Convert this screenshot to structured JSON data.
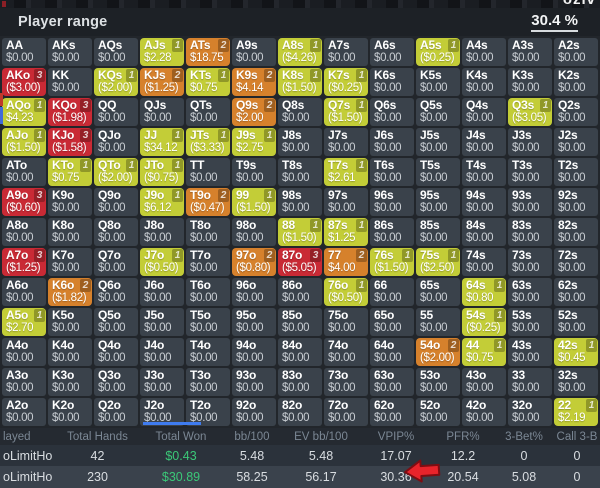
{
  "header": {
    "title": "Player range",
    "percent": "30.4 %"
  },
  "background": {
    "partial_text": "oziv"
  },
  "grid": {
    "cell_format": [
      "hand",
      "value",
      "color(n=none,y=yellow,o=orange,r=red)",
      "badge"
    ],
    "rows": [
      [
        [
          "AA",
          "$0.00",
          "n",
          ""
        ],
        [
          "AKs",
          "$0.00",
          "n",
          ""
        ],
        [
          "AQs",
          "$0.00",
          "n",
          ""
        ],
        [
          "AJs",
          "$2.28",
          "y",
          "1"
        ],
        [
          "ATs",
          "$18.75",
          "o",
          "2"
        ],
        [
          "A9s",
          "$0.00",
          "n",
          ""
        ],
        [
          "A8s",
          "($4.26)",
          "y",
          "1"
        ],
        [
          "A7s",
          "$0.00",
          "n",
          ""
        ],
        [
          "A6s",
          "$0.00",
          "n",
          ""
        ],
        [
          "A5s",
          "($0.25)",
          "y",
          "1"
        ],
        [
          "A4s",
          "$0.00",
          "n",
          ""
        ],
        [
          "A3s",
          "$0.00",
          "n",
          ""
        ],
        [
          "A2s",
          "$0.00",
          "n",
          ""
        ]
      ],
      [
        [
          "AKo",
          "($3.00)",
          "r",
          "3"
        ],
        [
          "KK",
          "$0.00",
          "n",
          ""
        ],
        [
          "KQs",
          "($2.00)",
          "y",
          "1"
        ],
        [
          "KJs",
          "($1.25)",
          "o",
          "2"
        ],
        [
          "KTs",
          "$0.75",
          "y",
          "1"
        ],
        [
          "K9s",
          "$4.14",
          "o",
          "2"
        ],
        [
          "K8s",
          "($1.50)",
          "y",
          "1"
        ],
        [
          "K7s",
          "($0.25)",
          "y",
          "1"
        ],
        [
          "K6s",
          "$0.00",
          "n",
          ""
        ],
        [
          "K5s",
          "$0.00",
          "n",
          ""
        ],
        [
          "K4s",
          "$0.00",
          "n",
          ""
        ],
        [
          "K3s",
          "$0.00",
          "n",
          ""
        ],
        [
          "K2s",
          "$0.00",
          "n",
          ""
        ]
      ],
      [
        [
          "AQo",
          "$4.23",
          "y",
          "1"
        ],
        [
          "KQo",
          "($1.98)",
          "r",
          "3"
        ],
        [
          "QQ",
          "$0.00",
          "n",
          ""
        ],
        [
          "QJs",
          "$0.00",
          "n",
          ""
        ],
        [
          "QTs",
          "$0.00",
          "n",
          ""
        ],
        [
          "Q9s",
          "$2.00",
          "o",
          "2"
        ],
        [
          "Q8s",
          "$0.00",
          "n",
          ""
        ],
        [
          "Q7s",
          "($1.50)",
          "y",
          "1"
        ],
        [
          "Q6s",
          "$0.00",
          "n",
          ""
        ],
        [
          "Q5s",
          "$0.00",
          "n",
          ""
        ],
        [
          "Q4s",
          "$0.00",
          "n",
          ""
        ],
        [
          "Q3s",
          "($3.05)",
          "y",
          "1"
        ],
        [
          "Q2s",
          "$0.00",
          "n",
          ""
        ]
      ],
      [
        [
          "AJo",
          "($1.50)",
          "y",
          "1"
        ],
        [
          "KJo",
          "($1.58)",
          "r",
          "3"
        ],
        [
          "QJo",
          "$0.00",
          "n",
          ""
        ],
        [
          "JJ",
          "$34.12",
          "y",
          "1"
        ],
        [
          "JTs",
          "($3.33)",
          "y",
          "1"
        ],
        [
          "J9s",
          "$2.75",
          "y",
          "1"
        ],
        [
          "J8s",
          "$0.00",
          "n",
          ""
        ],
        [
          "J7s",
          "$0.00",
          "n",
          ""
        ],
        [
          "J6s",
          "$0.00",
          "n",
          ""
        ],
        [
          "J5s",
          "$0.00",
          "n",
          ""
        ],
        [
          "J4s",
          "$0.00",
          "n",
          ""
        ],
        [
          "J3s",
          "$0.00",
          "n",
          ""
        ],
        [
          "J2s",
          "$0.00",
          "n",
          ""
        ]
      ],
      [
        [
          "ATo",
          "$0.00",
          "n",
          ""
        ],
        [
          "KTo",
          "$0.75",
          "y",
          "1"
        ],
        [
          "QTo",
          "($2.00)",
          "y",
          "1"
        ],
        [
          "JTo",
          "($0.75)",
          "y",
          "1"
        ],
        [
          "TT",
          "$0.00",
          "n",
          ""
        ],
        [
          "T9s",
          "$0.00",
          "n",
          ""
        ],
        [
          "T8s",
          "$0.00",
          "n",
          ""
        ],
        [
          "T7s",
          "$2.61",
          "y",
          "1"
        ],
        [
          "T6s",
          "$0.00",
          "n",
          ""
        ],
        [
          "T5s",
          "$0.00",
          "n",
          ""
        ],
        [
          "T4s",
          "$0.00",
          "n",
          ""
        ],
        [
          "T3s",
          "$0.00",
          "n",
          ""
        ],
        [
          "T2s",
          "$0.00",
          "n",
          ""
        ]
      ],
      [
        [
          "A9o",
          "($0.60)",
          "r",
          "3"
        ],
        [
          "K9o",
          "$0.00",
          "n",
          ""
        ],
        [
          "Q9o",
          "$0.00",
          "n",
          ""
        ],
        [
          "J9o",
          "$6.12",
          "y",
          "1"
        ],
        [
          "T9o",
          "($0.47)",
          "o",
          "2"
        ],
        [
          "99",
          "($1.50)",
          "y",
          "1"
        ],
        [
          "98s",
          "$0.00",
          "n",
          ""
        ],
        [
          "97s",
          "$0.00",
          "n",
          ""
        ],
        [
          "96s",
          "$0.00",
          "n",
          ""
        ],
        [
          "95s",
          "$0.00",
          "n",
          ""
        ],
        [
          "94s",
          "$0.00",
          "n",
          ""
        ],
        [
          "93s",
          "$0.00",
          "n",
          ""
        ],
        [
          "92s",
          "$0.00",
          "n",
          ""
        ]
      ],
      [
        [
          "A8o",
          "$0.00",
          "n",
          ""
        ],
        [
          "K8o",
          "$0.00",
          "n",
          ""
        ],
        [
          "Q8o",
          "$0.00",
          "n",
          ""
        ],
        [
          "J8o",
          "$0.00",
          "n",
          ""
        ],
        [
          "T8o",
          "$0.00",
          "n",
          ""
        ],
        [
          "98o",
          "$0.00",
          "n",
          ""
        ],
        [
          "88",
          "($1.50)",
          "y",
          "1"
        ],
        [
          "87s",
          "$1.25",
          "y",
          "1"
        ],
        [
          "86s",
          "$0.00",
          "n",
          ""
        ],
        [
          "85s",
          "$0.00",
          "n",
          ""
        ],
        [
          "84s",
          "$0.00",
          "n",
          ""
        ],
        [
          "83s",
          "$0.00",
          "n",
          ""
        ],
        [
          "82s",
          "$0.00",
          "n",
          ""
        ]
      ],
      [
        [
          "A7o",
          "($1.25)",
          "r",
          "3"
        ],
        [
          "K7o",
          "$0.00",
          "n",
          ""
        ],
        [
          "Q7o",
          "$0.00",
          "n",
          ""
        ],
        [
          "J7o",
          "($0.50)",
          "y",
          "1"
        ],
        [
          "T7o",
          "$0.00",
          "n",
          ""
        ],
        [
          "97o",
          "($0.80)",
          "o",
          "2"
        ],
        [
          "87o",
          "($5.05)",
          "r",
          "3"
        ],
        [
          "77",
          "$4.00",
          "o",
          "2"
        ],
        [
          "76s",
          "($1.50)",
          "y",
          "1"
        ],
        [
          "75s",
          "($2.50)",
          "y",
          "1"
        ],
        [
          "74s",
          "$0.00",
          "n",
          ""
        ],
        [
          "73s",
          "$0.00",
          "n",
          ""
        ],
        [
          "72s",
          "$0.00",
          "n",
          ""
        ]
      ],
      [
        [
          "A6o",
          "$0.00",
          "n",
          ""
        ],
        [
          "K6o",
          "($1.82)",
          "o",
          "2"
        ],
        [
          "Q6o",
          "$0.00",
          "n",
          ""
        ],
        [
          "J6o",
          "$0.00",
          "n",
          ""
        ],
        [
          "T6o",
          "$0.00",
          "n",
          ""
        ],
        [
          "96o",
          "$0.00",
          "n",
          ""
        ],
        [
          "86o",
          "$0.00",
          "n",
          ""
        ],
        [
          "76o",
          "($0.50)",
          "y",
          "1"
        ],
        [
          "66",
          "$0.00",
          "n",
          ""
        ],
        [
          "65s",
          "$0.00",
          "n",
          ""
        ],
        [
          "64s",
          "$0.80",
          "y",
          "1"
        ],
        [
          "63s",
          "$0.00",
          "n",
          ""
        ],
        [
          "62s",
          "$0.00",
          "n",
          ""
        ]
      ],
      [
        [
          "A5o",
          "$2.70",
          "y",
          "1"
        ],
        [
          "K5o",
          "$0.00",
          "n",
          ""
        ],
        [
          "Q5o",
          "$0.00",
          "n",
          ""
        ],
        [
          "J5o",
          "$0.00",
          "n",
          ""
        ],
        [
          "T5o",
          "$0.00",
          "n",
          ""
        ],
        [
          "95o",
          "$0.00",
          "n",
          ""
        ],
        [
          "85o",
          "$0.00",
          "n",
          ""
        ],
        [
          "75o",
          "$0.00",
          "n",
          ""
        ],
        [
          "65o",
          "$0.00",
          "n",
          ""
        ],
        [
          "55",
          "$0.00",
          "n",
          ""
        ],
        [
          "54s",
          "($0.25)",
          "y",
          "1"
        ],
        [
          "53s",
          "$0.00",
          "n",
          ""
        ],
        [
          "52s",
          "$0.00",
          "n",
          ""
        ]
      ],
      [
        [
          "A4o",
          "$0.00",
          "n",
          ""
        ],
        [
          "K4o",
          "$0.00",
          "n",
          ""
        ],
        [
          "Q4o",
          "$0.00",
          "n",
          ""
        ],
        [
          "J4o",
          "$0.00",
          "n",
          ""
        ],
        [
          "T4o",
          "$0.00",
          "n",
          ""
        ],
        [
          "94o",
          "$0.00",
          "n",
          ""
        ],
        [
          "84o",
          "$0.00",
          "n",
          ""
        ],
        [
          "74o",
          "$0.00",
          "n",
          ""
        ],
        [
          "64o",
          "$0.00",
          "n",
          ""
        ],
        [
          "54o",
          "($2.00)",
          "o",
          "2"
        ],
        [
          "44",
          "$0.75",
          "y",
          "1"
        ],
        [
          "43s",
          "$0.00",
          "n",
          ""
        ],
        [
          "42s",
          "$0.45",
          "y",
          "1"
        ]
      ],
      [
        [
          "A3o",
          "$0.00",
          "n",
          ""
        ],
        [
          "K3o",
          "$0.00",
          "n",
          ""
        ],
        [
          "Q3o",
          "$0.00",
          "n",
          ""
        ],
        [
          "J3o",
          "$0.00",
          "n",
          ""
        ],
        [
          "T3o",
          "$0.00",
          "n",
          ""
        ],
        [
          "93o",
          "$0.00",
          "n",
          ""
        ],
        [
          "83o",
          "$0.00",
          "n",
          ""
        ],
        [
          "73o",
          "$0.00",
          "n",
          ""
        ],
        [
          "63o",
          "$0.00",
          "n",
          ""
        ],
        [
          "53o",
          "$0.00",
          "n",
          ""
        ],
        [
          "43o",
          "$0.00",
          "n",
          ""
        ],
        [
          "33",
          "$0.00",
          "n",
          ""
        ],
        [
          "32s",
          "$0.00",
          "n",
          ""
        ]
      ],
      [
        [
          "A2o",
          "$0.00",
          "n",
          ""
        ],
        [
          "K2o",
          "$0.00",
          "n",
          ""
        ],
        [
          "Q2o",
          "$0.00",
          "n",
          ""
        ],
        [
          "J2o",
          "$0.00",
          "n",
          ""
        ],
        [
          "T2o",
          "$0.00",
          "n",
          ""
        ],
        [
          "92o",
          "$0.00",
          "n",
          ""
        ],
        [
          "82o",
          "$0.00",
          "n",
          ""
        ],
        [
          "72o",
          "$0.00",
          "n",
          ""
        ],
        [
          "62o",
          "$0.00",
          "n",
          ""
        ],
        [
          "52o",
          "$0.00",
          "n",
          ""
        ],
        [
          "42o",
          "$0.00",
          "n",
          ""
        ],
        [
          "32o",
          "$0.00",
          "n",
          ""
        ],
        [
          "22",
          "$2.19",
          "y",
          "1"
        ]
      ]
    ]
  },
  "footer": {
    "col_names": [
      "game-played",
      "total-hands",
      "total-won",
      "bb-100",
      "ev-bb-100",
      "vpip",
      "pfr",
      "three-bet",
      "call-3bet"
    ],
    "headers": [
      "layed",
      "Total Hands",
      "Total Won",
      "bb/100",
      "EV bb/100",
      "VPIP%",
      "PFR%",
      "3-Bet%",
      "Call 3-B"
    ],
    "rows": [
      [
        "oLimitHo",
        "42",
        "$0.43",
        "5.48",
        "5.48",
        "17.07",
        "12.2",
        "0",
        "0"
      ],
      [
        "oLimitHo",
        "230",
        "$30.89",
        "58.25",
        "56.17",
        "30.36",
        "20.54",
        "5.08",
        "0"
      ]
    ]
  },
  "colors": {
    "yellow_cell": "#c3cd37",
    "orange_cell": "#d6812c",
    "red_cell": "#c92a35",
    "default_cell": "#3a424b",
    "panel_bg": "#262b31",
    "titlebar_bg": "#1d2126",
    "money_green": "#3bc878",
    "arrow_red": "#e8242b",
    "indicator_blue": "#3f7cf0"
  }
}
